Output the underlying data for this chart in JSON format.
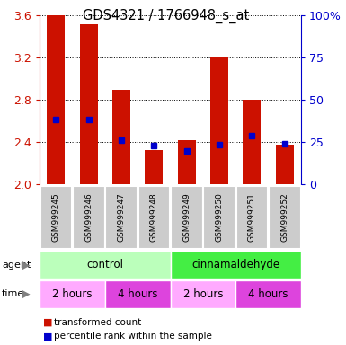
{
  "title": "GDS4321 / 1766948_s_at",
  "samples": [
    "GSM999245",
    "GSM999246",
    "GSM999247",
    "GSM999248",
    "GSM999249",
    "GSM999250",
    "GSM999251",
    "GSM999252"
  ],
  "bar_values": [
    3.6,
    3.52,
    2.9,
    2.33,
    2.42,
    3.2,
    2.8,
    2.38
  ],
  "percentile_values": [
    2.62,
    2.62,
    2.42,
    2.37,
    2.32,
    2.38,
    2.46,
    2.39
  ],
  "ylim": [
    2.0,
    3.6
  ],
  "yticks_left": [
    2.0,
    2.4,
    2.8,
    3.2,
    3.6
  ],
  "yticks_right": [
    0,
    25,
    50,
    75,
    100
  ],
  "bar_color": "#cc1100",
  "percentile_color": "#0000cc",
  "agent_groups": [
    {
      "label": "control",
      "start": 0,
      "end": 4,
      "color": "#bbffbb"
    },
    {
      "label": "cinnamaldehyde",
      "start": 4,
      "end": 8,
      "color": "#44ee44"
    }
  ],
  "time_groups": [
    {
      "label": "2 hours",
      "start": 0,
      "end": 2,
      "color": "#ffaaff"
    },
    {
      "label": "4 hours",
      "start": 2,
      "end": 4,
      "color": "#dd44dd"
    },
    {
      "label": "2 hours",
      "start": 4,
      "end": 6,
      "color": "#ffaaff"
    },
    {
      "label": "4 hours",
      "start": 6,
      "end": 8,
      "color": "#dd44dd"
    }
  ],
  "legend_red": "transformed count",
  "legend_blue": "percentile rank within the sample",
  "ylabel_left_color": "#cc1100",
  "ylabel_right_color": "#0000cc",
  "bar_base": 2.0,
  "sample_area_color": "#cccccc",
  "bg_color": "#ffffff"
}
